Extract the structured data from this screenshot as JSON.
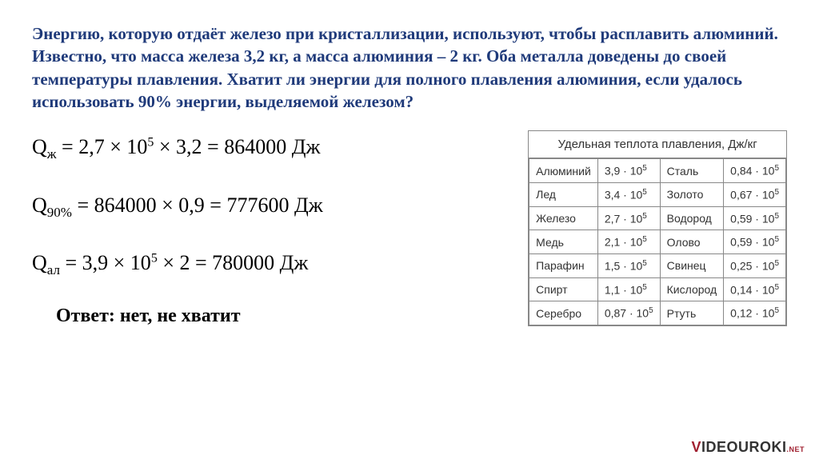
{
  "problem": "Энергию, которую отдаёт железо при кристаллизации, используют, чтобы расплавить алюминий. Известно, что масса железа 3,2 кг, а масса алюминия – 2 кг. Оба металла доведены до своей температуры плавления. Хватит ли энергии для полного плавления алюминия, если удалось использовать  90% энергии, выделяемой железом?",
  "eq1": {
    "lhs_sub": "ж",
    "factor1": "2,7",
    "exp1": "5",
    "factor2": "3,2",
    "result": "864000",
    "unit": "Дж"
  },
  "eq2": {
    "lhs_sub": "90%",
    "factor1": "864000",
    "factor2": "0,9",
    "result": "777600",
    "unit": "Дж"
  },
  "eq3": {
    "lhs_sub": "ал",
    "factor1": "3,9",
    "exp1": "5",
    "factor2": "2",
    "result": "780000",
    "unit": "Дж"
  },
  "answer": "Ответ: нет, не хватит",
  "table": {
    "header": "Удельная теплота плавления, Дж/кг",
    "rows": [
      {
        "m1": "Алюминий",
        "v1_c": "3,9",
        "v1_e": "5",
        "m2": "Сталь",
        "v2_c": "0,84",
        "v2_e": "5"
      },
      {
        "m1": "Лед",
        "v1_c": "3,4",
        "v1_e": "5",
        "m2": "Золото",
        "v2_c": "0,67",
        "v2_e": "5"
      },
      {
        "m1": "Железо",
        "v1_c": "2,7",
        "v1_e": "5",
        "m2": "Водород",
        "v2_c": "0,59",
        "v2_e": "5"
      },
      {
        "m1": "Медь",
        "v1_c": "2,1",
        "v1_e": "5",
        "m2": "Олово",
        "v2_c": "0,59",
        "v2_e": "5"
      },
      {
        "m1": "Парафин",
        "v1_c": "1,5",
        "v1_e": "5",
        "m2": "Свинец",
        "v2_c": "0,25",
        "v2_e": "5"
      },
      {
        "m1": "Спирт",
        "v1_c": "1,1",
        "v1_e": "5",
        "m2": "Кислород",
        "v2_c": "0,14",
        "v2_e": "5"
      },
      {
        "m1": "Серебро",
        "v1_c": "0,87",
        "v1_e": "5",
        "m2": "Ртуть",
        "v2_c": "0,12",
        "v2_e": "5"
      }
    ]
  },
  "watermark": {
    "v": "V",
    "rest": "IDEOUROKI",
    "net": ".NET"
  },
  "colors": {
    "problem_text": "#1f3a7a",
    "body_bg": "#ffffff",
    "table_border": "#888888",
    "wm_red": "#a02030"
  }
}
